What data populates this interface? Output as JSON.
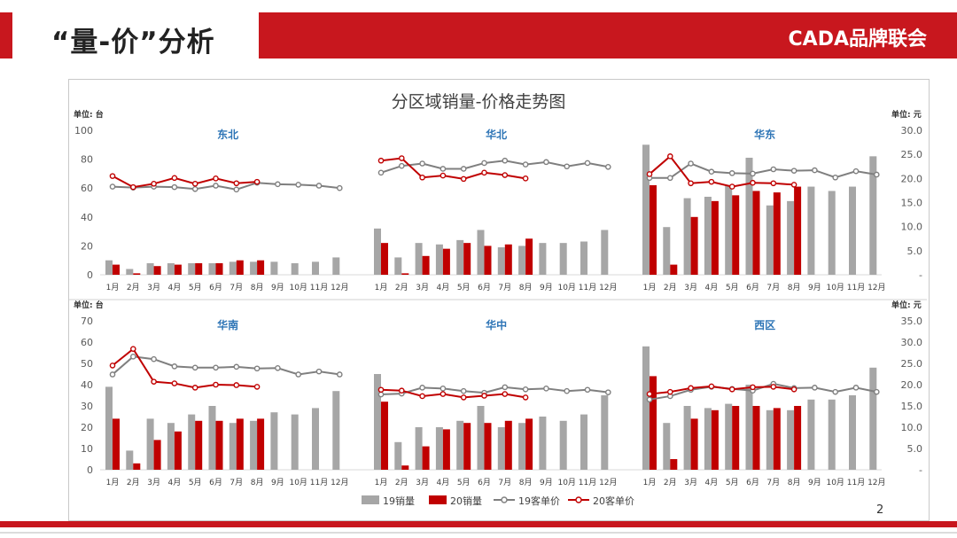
{
  "header": {
    "title": "“量-价”分析",
    "brand": "CADA品牌联会"
  },
  "colors": {
    "accent": "#c8171e",
    "series19": "#a6a6a6",
    "series20": "#c00000",
    "price19": "#7f7f7f",
    "price20": "#c00000"
  },
  "page_number": "2",
  "chart_data": {
    "type": "bar",
    "title": "分区域销量-价格走势图",
    "months": [
      "1月",
      "2月",
      "3月",
      "4月",
      "5月",
      "6月",
      "7月",
      "8月",
      "9月",
      "10月",
      "11月",
      "12月"
    ],
    "legend": [
      "19销量",
      "20销量",
      "19客单价",
      "20客单价"
    ],
    "legend_position": "bottom",
    "rows": [
      {
        "left_unit": "单位: 台",
        "right_unit": "单位: 元",
        "ylim": [
          0,
          100
        ],
        "yticks": [
          "0",
          "20",
          "40",
          "60",
          "80",
          "100"
        ],
        "y2lim": [
          0,
          30
        ],
        "y2ticks": [
          "-",
          "5.0",
          "10.0",
          "15.0",
          "20.0",
          "25.0",
          "30.0"
        ],
        "regions": [
          {
            "name": "东北",
            "sales19": [
              10,
              4,
              8,
              8,
              8,
              8,
              9,
              9,
              9,
              8,
              9,
              12
            ],
            "sales20": [
              7,
              1,
              6,
              7,
              8,
              8,
              10,
              10
            ],
            "price19": [
              18.3,
              18.1,
              18.3,
              18.2,
              17.8,
              18.5,
              17.7,
              19.1,
              18.8,
              18.7,
              18.5,
              18.0
            ],
            "price20": [
              20.5,
              18.2,
              18.9,
              20.1,
              18.9,
              20.0,
              19.0,
              19.3
            ]
          },
          {
            "name": "华北",
            "sales19": [
              32,
              12,
              22,
              21,
              24,
              31,
              19,
              20,
              22,
              22,
              23,
              31
            ],
            "sales20": [
              22,
              1,
              13,
              18,
              22,
              20,
              21,
              25
            ],
            "price19": [
              21.2,
              22.6,
              23.1,
              22.0,
              22.0,
              23.2,
              23.7,
              22.9,
              23.4,
              22.5,
              23.2,
              22.4
            ],
            "price20": [
              23.7,
              24.2,
              20.2,
              20.6,
              19.9,
              21.2,
              20.7,
              20.0
            ]
          },
          {
            "name": "华东",
            "sales19": [
              90,
              33,
              53,
              54,
              62,
              81,
              48,
              51,
              61,
              58,
              61,
              82
            ],
            "sales20": [
              62,
              7,
              40,
              51,
              55,
              58,
              57,
              61
            ],
            "price19": [
              20.1,
              20.1,
              23.1,
              21.4,
              21.1,
              21.0,
              21.9,
              21.6,
              21.7,
              20.2,
              21.5,
              20.8
            ],
            "price20": [
              20.9,
              24.6,
              19.0,
              19.3,
              18.3,
              19.1,
              19.0,
              18.7
            ]
          }
        ]
      },
      {
        "left_unit": "单位: 台",
        "right_unit": "单位: 元",
        "ylim": [
          0,
          70
        ],
        "yticks": [
          "0",
          "10",
          "20",
          "30",
          "40",
          "50",
          "60",
          "70"
        ],
        "y2lim": [
          0,
          35
        ],
        "y2ticks": [
          "-",
          "5.0",
          "10.0",
          "15.0",
          "20.0",
          "25.0",
          "30.0",
          "35.0"
        ],
        "regions": [
          {
            "name": "华南",
            "sales19": [
              39,
              9,
              24,
              22,
              26,
              30,
              22,
              23,
              27,
              26,
              29,
              37
            ],
            "sales20": [
              24,
              3,
              14,
              18,
              23,
              23,
              24,
              24
            ],
            "price19": [
              22.4,
              26.6,
              26.0,
              24.3,
              24.0,
              24.0,
              24.2,
              23.8,
              23.9,
              22.4,
              23.1,
              22.4
            ],
            "price20": [
              24.5,
              28.4,
              20.7,
              20.3,
              19.3,
              20.0,
              19.9,
              19.5
            ]
          },
          {
            "name": "华中",
            "sales19": [
              45,
              13,
              20,
              20,
              23,
              30,
              20,
              22,
              25,
              23,
              26,
              35
            ],
            "sales20": [
              32,
              2,
              11,
              19,
              22,
              22,
              23,
              24
            ],
            "price19": [
              17.7,
              17.9,
              19.3,
              19.1,
              18.5,
              18.1,
              19.4,
              18.9,
              19.1,
              18.5,
              18.8,
              18.2
            ],
            "price20": [
              18.8,
              18.6,
              17.3,
              17.8,
              17.0,
              17.4,
              17.8,
              17.0
            ]
          },
          {
            "name": "西区",
            "sales19": [
              58,
              22,
              30,
              29,
              31,
              40,
              28,
              28,
              33,
              33,
              35,
              48
            ],
            "sales20": [
              44,
              5,
              24,
              28,
              30,
              30,
              29,
              30
            ],
            "price19": [
              16.5,
              17.3,
              18.8,
              19.5,
              19.0,
              18.6,
              20.2,
              19.2,
              19.3,
              18.3,
              19.3,
              18.3
            ],
            "price20": [
              17.8,
              18.3,
              19.2,
              19.6,
              18.9,
              19.4,
              19.5,
              18.9
            ]
          }
        ]
      }
    ]
  }
}
